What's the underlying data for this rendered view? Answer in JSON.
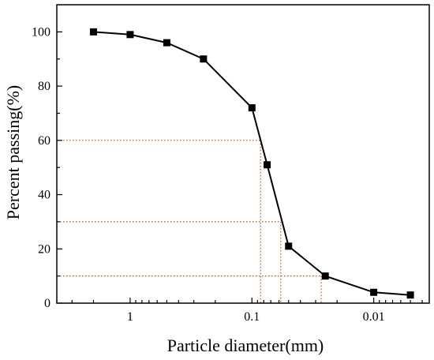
{
  "chart_data": {
    "type": "line",
    "xlabel": "Particle diameter(mm)",
    "ylabel": "Percent passing(%)",
    "x_scale": "log",
    "x_reversed": true,
    "xlim": [
      4,
      0.0035
    ],
    "ylim": [
      0,
      110
    ],
    "x_ticks": [
      1,
      0.1,
      0.01
    ],
    "x_tick_labels": [
      "1",
      "0.1",
      "0.01"
    ],
    "y_ticks": [
      0,
      20,
      40,
      60,
      80,
      100
    ],
    "y_tick_labels": [
      "0",
      "20",
      "40",
      "60",
      "80",
      "100"
    ],
    "grid": false,
    "series": [
      {
        "x": [
          2,
          1,
          0.5,
          0.25,
          0.1,
          0.075,
          0.05,
          0.025,
          0.01,
          0.005
        ],
        "y": [
          100,
          99,
          96,
          90,
          72,
          51,
          21,
          10,
          4,
          3
        ],
        "color": "#000000",
        "marker": "square"
      }
    ],
    "reference_lines": [
      {
        "y": 60,
        "x": 0.085,
        "color": "#b5532a"
      },
      {
        "y": 30,
        "x": 0.058,
        "color": "#b5532a"
      },
      {
        "y": 10,
        "x": 0.027,
        "color": "#b5532a"
      }
    ]
  }
}
